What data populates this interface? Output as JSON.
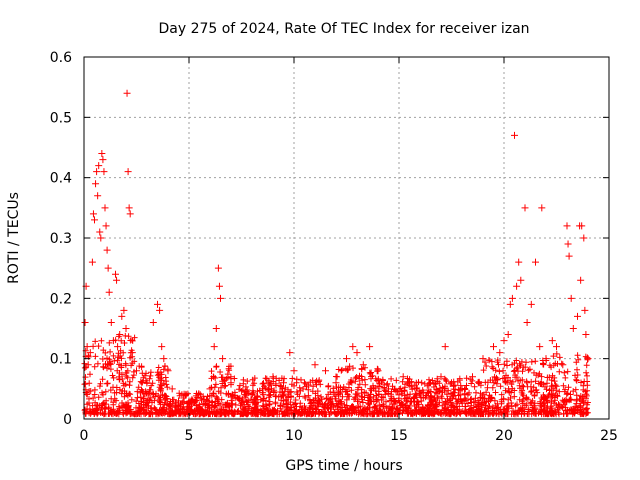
{
  "chart_data": {
    "type": "scatter",
    "title": "Day 275 of 2024, Rate Of TEC Index for receiver izan",
    "xlabel": "GPS time / hours",
    "ylabel": "ROTI / TECUs",
    "xlim": [
      0,
      25
    ],
    "ylim": [
      0,
      0.6
    ],
    "xticks": [
      0,
      5,
      10,
      15,
      20,
      25
    ],
    "yticks": [
      0,
      0.1,
      0.2,
      0.3,
      0.4,
      0.5,
      0.6
    ],
    "xtick_labels": [
      "0",
      "5",
      "10",
      "15",
      "20",
      "25"
    ],
    "ytick_labels": [
      "0",
      "0.1",
      "0.2",
      "0.3",
      "0.4",
      "0.5",
      "0.6"
    ],
    "grid": true,
    "marker": "+",
    "color": "#ff0000",
    "series": [
      {
        "name": "ROTI",
        "points": [
          [
            0.05,
            0.16
          ],
          [
            0.1,
            0.22
          ],
          [
            0.15,
            0.12
          ],
          [
            0.2,
            0.09
          ],
          [
            0.3,
            0.11
          ],
          [
            0.4,
            0.26
          ],
          [
            0.45,
            0.34
          ],
          [
            0.5,
            0.33
          ],
          [
            0.55,
            0.39
          ],
          [
            0.6,
            0.41
          ],
          [
            0.65,
            0.37
          ],
          [
            0.7,
            0.42
          ],
          [
            0.75,
            0.31
          ],
          [
            0.8,
            0.3
          ],
          [
            0.85,
            0.44
          ],
          [
            0.9,
            0.43
          ],
          [
            0.95,
            0.41
          ],
          [
            1.0,
            0.35
          ],
          [
            1.05,
            0.32
          ],
          [
            1.1,
            0.28
          ],
          [
            1.15,
            0.25
          ],
          [
            1.2,
            0.21
          ],
          [
            1.3,
            0.16
          ],
          [
            1.4,
            0.13
          ],
          [
            1.5,
            0.24
          ],
          [
            1.55,
            0.23
          ],
          [
            1.6,
            0.12
          ],
          [
            1.7,
            0.14
          ],
          [
            1.8,
            0.17
          ],
          [
            1.9,
            0.18
          ],
          [
            2.0,
            0.15
          ],
          [
            2.05,
            0.54
          ],
          [
            2.1,
            0.41
          ],
          [
            2.15,
            0.35
          ],
          [
            2.2,
            0.34
          ],
          [
            2.3,
            0.11
          ],
          [
            2.5,
            0.08
          ],
          [
            3.0,
            0.06
          ],
          [
            3.3,
            0.16
          ],
          [
            3.5,
            0.19
          ],
          [
            3.6,
            0.18
          ],
          [
            3.7,
            0.12
          ],
          [
            3.8,
            0.1
          ],
          [
            4.0,
            0.08
          ],
          [
            4.2,
            0.05
          ],
          [
            4.5,
            0.03
          ],
          [
            5.0,
            0.02
          ],
          [
            5.5,
            0.02
          ],
          [
            6.0,
            0.05
          ],
          [
            6.2,
            0.12
          ],
          [
            6.3,
            0.15
          ],
          [
            6.4,
            0.25
          ],
          [
            6.45,
            0.22
          ],
          [
            6.5,
            0.2
          ],
          [
            6.6,
            0.1
          ],
          [
            7.0,
            0.06
          ],
          [
            7.5,
            0.03
          ],
          [
            8.0,
            0.04
          ],
          [
            8.5,
            0.05
          ],
          [
            9.0,
            0.07
          ],
          [
            9.5,
            0.06
          ],
          [
            9.8,
            0.11
          ],
          [
            10.0,
            0.08
          ],
          [
            10.5,
            0.06
          ],
          [
            11.0,
            0.09
          ],
          [
            11.5,
            0.08
          ],
          [
            12.0,
            0.06
          ],
          [
            12.5,
            0.1
          ],
          [
            12.8,
            0.12
          ],
          [
            13.0,
            0.11
          ],
          [
            13.3,
            0.09
          ],
          [
            13.6,
            0.12
          ],
          [
            14.0,
            0.08
          ],
          [
            14.5,
            0.05
          ],
          [
            15.0,
            0.04
          ],
          [
            15.2,
            0.07
          ],
          [
            15.5,
            0.06
          ],
          [
            16.0,
            0.04
          ],
          [
            16.5,
            0.06
          ],
          [
            17.0,
            0.07
          ],
          [
            17.2,
            0.12
          ],
          [
            17.5,
            0.06
          ],
          [
            18.0,
            0.05
          ],
          [
            18.5,
            0.07
          ],
          [
            19.0,
            0.1
          ],
          [
            19.5,
            0.12
          ],
          [
            19.8,
            0.11
          ],
          [
            20.0,
            0.13
          ],
          [
            20.2,
            0.14
          ],
          [
            20.3,
            0.19
          ],
          [
            20.4,
            0.2
          ],
          [
            20.5,
            0.47
          ],
          [
            20.6,
            0.22
          ],
          [
            20.7,
            0.26
          ],
          [
            20.8,
            0.23
          ],
          [
            21.0,
            0.35
          ],
          [
            21.1,
            0.16
          ],
          [
            21.3,
            0.19
          ],
          [
            21.5,
            0.26
          ],
          [
            21.7,
            0.12
          ],
          [
            21.8,
            0.35
          ],
          [
            22.0,
            0.1
          ],
          [
            22.3,
            0.13
          ],
          [
            22.5,
            0.12
          ],
          [
            22.8,
            0.09
          ],
          [
            23.0,
            0.32
          ],
          [
            23.05,
            0.29
          ],
          [
            23.1,
            0.27
          ],
          [
            23.2,
            0.2
          ],
          [
            23.3,
            0.15
          ],
          [
            23.5,
            0.17
          ],
          [
            23.6,
            0.32
          ],
          [
            23.65,
            0.23
          ],
          [
            23.7,
            0.32
          ],
          [
            23.8,
            0.3
          ],
          [
            23.85,
            0.18
          ],
          [
            23.9,
            0.14
          ],
          [
            24.0,
            0.1
          ]
        ]
      }
    ]
  }
}
